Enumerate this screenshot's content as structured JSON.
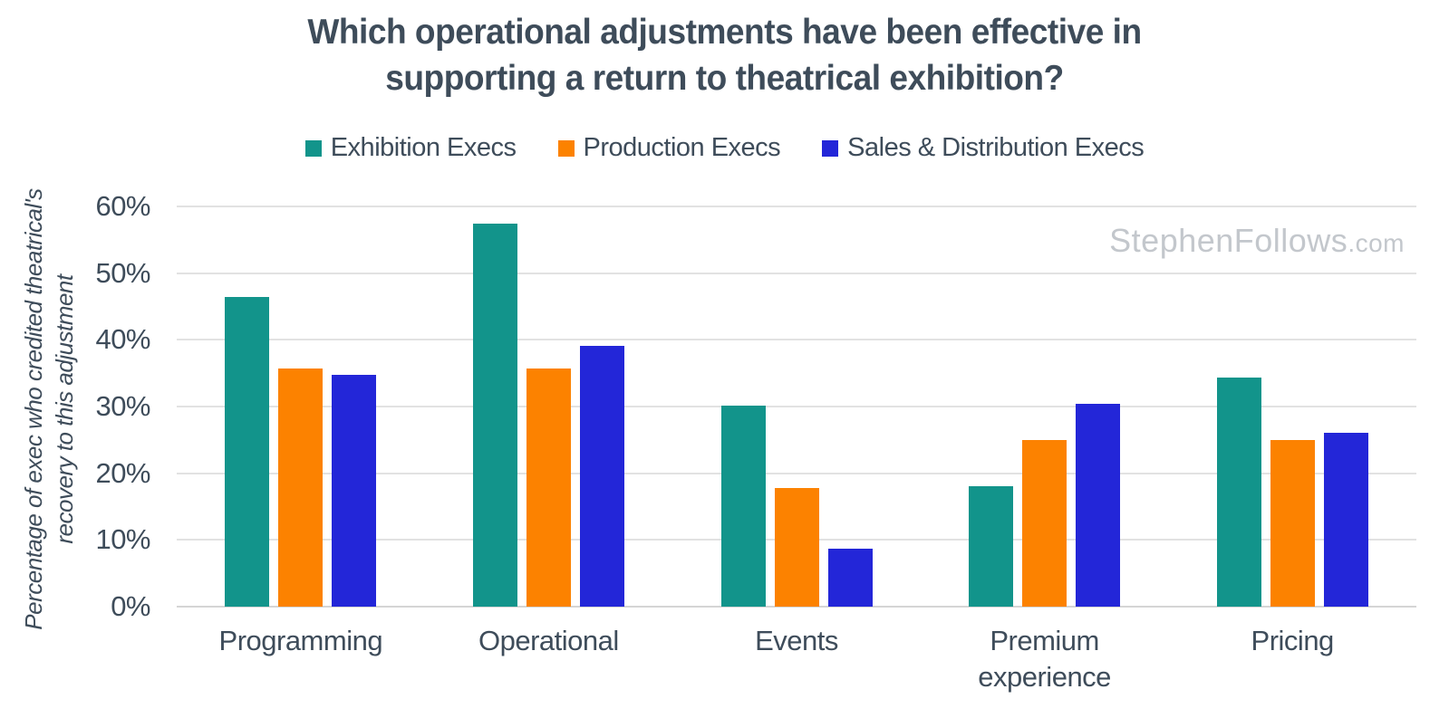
{
  "title": {
    "line1": "Which operational adjustments have been effective in",
    "line2": "supporting a return to theatrical exhibition?"
  },
  "watermark": {
    "name": "StephenFollows",
    "tld": ".com"
  },
  "colors": {
    "text": "#3E4C5A",
    "gridline": "#E2E2E2",
    "baseline": "#D5D5D5",
    "watermark": "#C3C7CC",
    "exhibition": "#12948B",
    "production": "#FC8200",
    "sales": "#2326D8"
  },
  "chart_data": {
    "type": "bar",
    "title": "Which operational adjustments have been effective in supporting a return to theatrical exhibition?",
    "categories": [
      "Programming",
      "Operational",
      "Events",
      "Premium experience",
      "Pricing"
    ],
    "series": [
      {
        "name": "Exhibition Execs",
        "color": "#12948B",
        "values": [
          46.4,
          57.4,
          30.1,
          18.0,
          34.3
        ]
      },
      {
        "name": "Production Execs",
        "color": "#FC8200",
        "values": [
          35.7,
          35.7,
          17.8,
          25.0,
          25.0
        ]
      },
      {
        "name": "Sales & Distribution Execs",
        "color": "#2326D8",
        "values": [
          34.8,
          39.1,
          8.7,
          30.4,
          26.1
        ]
      }
    ],
    "xlabel": "",
    "ylabel": "Percentage of exec who credited theatrical's recovery to this adjustment",
    "ylabel_lines": [
      "Percentage of exec who credited theatrical's",
      "recovery to this adjustment"
    ],
    "yticks": [
      "0%",
      "10%",
      "20%",
      "30%",
      "40%",
      "50%",
      "60%"
    ],
    "ylim": [
      0,
      60
    ],
    "grid": "horizontal",
    "legend_position": "top"
  }
}
